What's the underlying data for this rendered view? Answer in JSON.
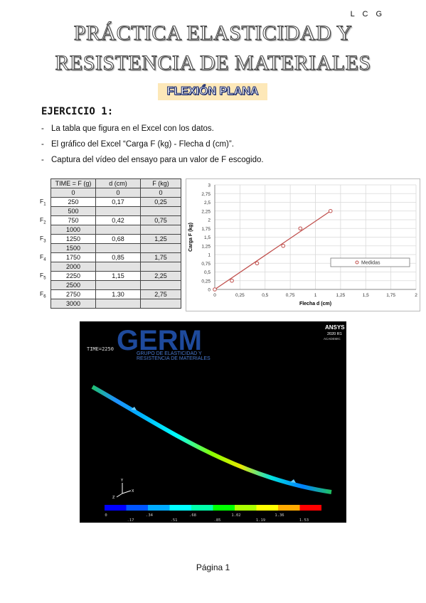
{
  "header": {
    "initials": "L C G"
  },
  "title": {
    "line1": "PRÁCTICA ELASTICIDAD Y",
    "line2": "RESISTENCIA DE MATERIALES",
    "subtitle": "FLEXIÓN PLANA"
  },
  "exercise": {
    "heading": "EJERCICIO 1:",
    "bullets": [
      "La tabla que figura en el Excel con los datos.",
      "El gráfico del Excel “Carga F (kg) - Flecha d (cm)”.",
      "Captura del vídeo del ensayo para un valor de F escogido."
    ]
  },
  "table": {
    "headers": [
      "TIME = F (g)",
      "d (cm)",
      "F (kg)"
    ],
    "rows": [
      {
        "label": "",
        "time": "0",
        "d": "0",
        "f": "0",
        "grey": true
      },
      {
        "label": "F1",
        "time": "250",
        "d": "0,17",
        "f": "0,25",
        "grey": false
      },
      {
        "label": "",
        "time": "500",
        "d": "",
        "f": "",
        "grey": true
      },
      {
        "label": "F2",
        "time": "750",
        "d": "0,42",
        "f": "0,75",
        "grey": false
      },
      {
        "label": "",
        "time": "1000",
        "d": "",
        "f": "",
        "grey": true
      },
      {
        "label": "F3",
        "time": "1250",
        "d": "0,68",
        "f": "1,25",
        "grey": false
      },
      {
        "label": "",
        "time": "1500",
        "d": "",
        "f": "",
        "grey": true
      },
      {
        "label": "F4",
        "time": "1750",
        "d": "0,85",
        "f": "1,75",
        "grey": false
      },
      {
        "label": "",
        "time": "2000",
        "d": "",
        "f": "",
        "grey": true
      },
      {
        "label": "F5",
        "time": "2250",
        "d": "1,15",
        "f": "2,25",
        "grey": false
      },
      {
        "label": "",
        "time": "2500",
        "d": "",
        "f": "",
        "grey": true
      },
      {
        "label": "F6",
        "time": "2750",
        "d": "1.30",
        "f": "2,75",
        "grey": false
      },
      {
        "label": "",
        "time": "3000",
        "d": "",
        "f": "",
        "grey": true
      }
    ]
  },
  "chart_data": {
    "type": "scatter",
    "xlabel": "Flecha d (cm)",
    "ylabel": "Carga F (kg)",
    "xlim": [
      0,
      2
    ],
    "ylim": [
      0,
      3
    ],
    "xticks": [
      "0",
      "0,25",
      "0,5",
      "0,75",
      "1",
      "1,25",
      "1,5",
      "1,75",
      "2"
    ],
    "yticks": [
      "0",
      "0,25",
      "0,5",
      "0,75",
      "1",
      "1,25",
      "1,5",
      "1,75",
      "2",
      "2,25",
      "2,5",
      "2,75",
      "3"
    ],
    "grid": true,
    "legend": "right",
    "series": [
      {
        "name": "Medidas",
        "x": [
          0,
          0.17,
          0.42,
          0.68,
          0.85,
          1.15
        ],
        "y": [
          0,
          0.25,
          0.75,
          1.25,
          1.75,
          2.25
        ],
        "color": "#c0504d"
      }
    ],
    "trendline": {
      "x": [
        0,
        1.15
      ],
      "y": [
        0,
        2.25
      ],
      "color": "#c0504d"
    }
  },
  "simulation": {
    "logo": "GERM",
    "logo_sub1": "GRUPO DE ELASTICIDAD Y",
    "logo_sub2": "RESISTENCIA DE MATERIALES",
    "time_label": "TIME=2250",
    "ansys": "ANSYS",
    "ansys_version": "2020 R1",
    "ansys_edition": "ACADEMIC",
    "axis_x": "X",
    "axis_y": "Y",
    "axis_z": "Z",
    "scale_top": [
      "0",
      ".34",
      ".68",
      "1.02",
      "1.36"
    ],
    "scale_bottom": [
      ".17",
      ".51",
      ".85",
      "1.19",
      "1.53"
    ],
    "scale_colors": [
      "#0000ff",
      "#0055ff",
      "#00aaff",
      "#00ffff",
      "#00ffaa",
      "#00ff00",
      "#aaff00",
      "#ffff00",
      "#ffaa00",
      "#ff0000"
    ]
  },
  "footer": {
    "page": "Página 1"
  }
}
